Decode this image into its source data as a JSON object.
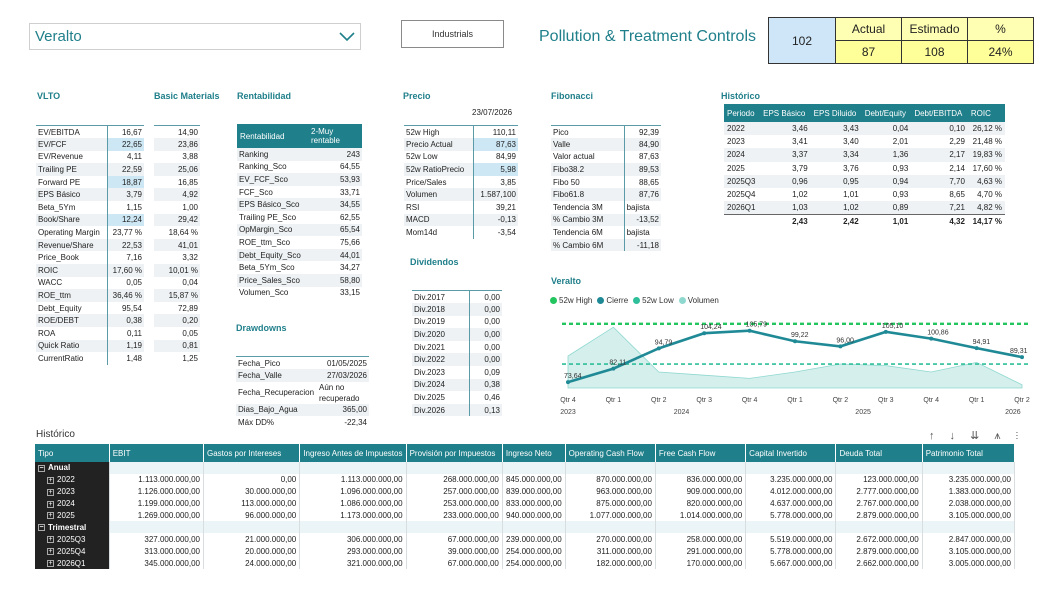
{
  "header": {
    "company": "Veralto",
    "sector": "Industrials",
    "industry": "Pollution & Treatment Controls",
    "kpi": {
      "rank": "102",
      "headers": [
        "Actual",
        "Estimado",
        "%"
      ],
      "values": [
        "87",
        "108",
        "24%"
      ]
    }
  },
  "vlto": {
    "title": "VLTO",
    "rows": [
      [
        "EV/EBITDA",
        "16,67"
      ],
      [
        "EV/FCF",
        "22,65"
      ],
      [
        "EV/Revenue",
        "4,11"
      ],
      [
        "Trailing PE",
        "22,59"
      ],
      [
        "Forward PE",
        "18,87"
      ],
      [
        "EPS Básico",
        "3,79"
      ],
      [
        "Beta_5Ym",
        "1,15"
      ],
      [
        "Book/Share",
        "12,24"
      ],
      [
        "Operating Margin",
        "23,77 %"
      ],
      [
        "Revenue/Share",
        "22,53"
      ],
      [
        "Price_Book",
        "7,16"
      ],
      [
        "ROIC",
        "17,60 %"
      ],
      [
        "WACC",
        "0,05"
      ],
      [
        "ROE_ttm",
        "36,46 %"
      ],
      [
        "Debt_Equity",
        "95,54"
      ],
      [
        "ROE/DEBT",
        "0,38"
      ],
      [
        "ROA",
        "0,11"
      ],
      [
        "Quick Ratio",
        "1,19"
      ],
      [
        "CurrentRatio",
        "1,48"
      ]
    ]
  },
  "basic": {
    "title": "Basic Materials",
    "values": [
      "14,90",
      "23,86",
      "3,88",
      "25,06",
      "16,85",
      "4,92",
      "1,00",
      "29,42",
      "18,64 %",
      "41,01",
      "3,32",
      "10,01 %",
      "0,04",
      "15,87 %",
      "72,89",
      "0,20",
      "0,05",
      "0,81",
      "1,25"
    ]
  },
  "rentabilidad": {
    "title": "Rentabilidad",
    "header": [
      "Rentabilidad",
      "2-Muy rentable"
    ],
    "rows": [
      [
        "Ranking",
        "243"
      ],
      [
        "Ranking_Sco",
        "64,55"
      ],
      [
        "EV_FCF_Sco",
        "53,93"
      ],
      [
        "FCF_Sco",
        "33,71"
      ],
      [
        "EPS Básico_Sco",
        "34,55"
      ],
      [
        "Trailing PE_Sco",
        "62,55"
      ],
      [
        "OpMargin_Sco",
        "65,54"
      ],
      [
        "ROE_ttm_Sco",
        "75,66"
      ],
      [
        "Debt_Equity_Sco",
        "44,01"
      ],
      [
        "Beta_5Ym_Sco",
        "34,27"
      ],
      [
        "Price_Sales_Sco",
        "58,80"
      ],
      [
        "Volumen_Sco",
        "33,15"
      ]
    ]
  },
  "drawdowns": {
    "title": "Drawdowns",
    "rows": [
      [
        "Fecha_Pico",
        "01/05/2025"
      ],
      [
        "Fecha_Valle",
        "27/03/2026"
      ],
      [
        "Fecha_Recuperacion",
        "Aún no recuperado"
      ],
      [
        "Dias_Bajo_Agua",
        "365,00"
      ],
      [
        "Máx DD%",
        "-22,34"
      ]
    ]
  },
  "precio": {
    "title": "Precio",
    "date": "23/07/2026",
    "rows": [
      [
        "52w High",
        "110,11"
      ],
      [
        "Precio Actual",
        "87,63"
      ],
      [
        "52w Low",
        "84,99"
      ],
      [
        "52w RatioPrecio",
        "5,98"
      ],
      [
        "Price/Sales",
        "3,85"
      ],
      [
        "Volumen",
        "1.587,100"
      ],
      [
        "RSI",
        "39,21"
      ],
      [
        "MACD",
        "-0,13"
      ],
      [
        "Mom14d",
        "-3,54"
      ]
    ]
  },
  "dividendos": {
    "title": "Dividendos",
    "rows": [
      [
        "Div.2017",
        "0,00"
      ],
      [
        "Div.2018",
        "0,00"
      ],
      [
        "Div.2019",
        "0,00"
      ],
      [
        "Div.2020",
        "0,00"
      ],
      [
        "Div.2021",
        "0,00"
      ],
      [
        "Div.2022",
        "0,00"
      ],
      [
        "Div.2023",
        "0,09"
      ],
      [
        "Div.2024",
        "0,38"
      ],
      [
        "Div.2025",
        "0,46"
      ],
      [
        "Div.2026",
        "0,13"
      ]
    ]
  },
  "fibonacci": {
    "title": "Fibonacci",
    "rows": [
      [
        "Pico",
        "92,39"
      ],
      [
        "Valle",
        "84,90"
      ],
      [
        "Valor actual",
        "87,63"
      ],
      [
        "Fibo38.2",
        "89,53"
      ],
      [
        "Fibo 50",
        "88,65"
      ],
      [
        "Fibo61.8",
        "87,76"
      ],
      [
        "Tendencia 3M",
        "bajista"
      ],
      [
        "% Cambio 3M",
        "-13,52"
      ],
      [
        "Tendencia 6M",
        "bajista"
      ],
      [
        "% Cambio 6M",
        "-11,18"
      ]
    ]
  },
  "historico_small": {
    "title": "Histórico",
    "headers": [
      "Periodo",
      "EPS Básico",
      "EPS Diluido",
      "Debt/Equity",
      "Debt/EBITDA",
      "ROIC"
    ],
    "rows": [
      [
        "2022",
        "3,46",
        "3,43",
        "0,04",
        "0,10",
        "26,12 %"
      ],
      [
        "2023",
        "3,41",
        "3,40",
        "2,01",
        "2,29",
        "21,48 %"
      ],
      [
        "2024",
        "3,37",
        "3,34",
        "1,36",
        "2,17",
        "19,83 %"
      ],
      [
        "2025",
        "3,79",
        "3,76",
        "0,93",
        "2,14",
        "17,60 %"
      ],
      [
        "2025Q3",
        "0,96",
        "0,95",
        "0,94",
        "7,70",
        "4,63 %"
      ],
      [
        "2025Q4",
        "1,02",
        "1,01",
        "0,93",
        "8,65",
        "4,70 %"
      ],
      [
        "2026Q1",
        "1,03",
        "1,02",
        "0,89",
        "7,21",
        "4,82 %"
      ]
    ],
    "total": [
      "",
      "2,43",
      "2,42",
      "1,01",
      "4,32",
      "14,17 %"
    ]
  },
  "chart_data": {
    "type": "line",
    "title": "Veralto",
    "legend": [
      "52w High",
      "Cierre",
      "52w Low",
      "Volumen"
    ],
    "legend_position": "top-left",
    "x": [
      "Qtr 4 2023",
      "Qtr 1 2024",
      "Qtr 2 2024",
      "Qtr 3 2024",
      "Qtr 4 2024",
      "Qtr 1 2025",
      "Qtr 2 2025",
      "Qtr 3 2025",
      "Qtr 4 2025",
      "Qtr 1 2026",
      "Qtr 2 2026"
    ],
    "x_ticks": [
      "Qtr 4",
      "Qtr 1",
      "Qtr 2",
      "Qtr 3",
      "Qtr 4",
      "Qtr 1",
      "Qtr 2",
      "Qtr 3",
      "Qtr 4",
      "Qtr 1",
      "Qtr 2"
    ],
    "year_labels": [
      {
        "label": "2023",
        "at": 0
      },
      {
        "label": "2024",
        "at": 2.5
      },
      {
        "label": "2025",
        "at": 6.5
      },
      {
        "label": "2026",
        "at": 9.8
      }
    ],
    "series": [
      {
        "name": "52w High",
        "values": [
          110.11,
          110.11,
          110.11,
          110.11,
          110.11,
          110.11,
          110.11,
          110.11,
          110.11,
          110.11,
          110.11
        ],
        "color": "#22c55e",
        "style": "dashed"
      },
      {
        "name": "Cierre",
        "values": [
          73.64,
          82.11,
          94.79,
          104.24,
          105.79,
          99.22,
          96.0,
          105.1,
          100.86,
          94.91,
          89.31
        ],
        "color": "#1f8a96",
        "style": "solid"
      },
      {
        "name": "52w Low",
        "values": [
          84.99,
          84.99,
          84.99,
          84.99,
          84.99,
          84.99,
          84.99,
          84.99,
          84.99,
          84.99,
          84.99
        ],
        "color": "#2fbf9a",
        "style": "dashed"
      },
      {
        "name": "Volumen",
        "values": [
          90,
          108,
          80,
          78,
          76,
          80,
          85,
          84,
          80,
          86,
          72
        ],
        "color": "#8ed8d0",
        "style": "area"
      }
    ],
    "data_labels": [
      "73,64",
      "82,11",
      "94,79",
      "104,24",
      "105,79",
      "99,22",
      "96,00",
      "105,10",
      "100,86",
      "94,91",
      "89,31"
    ],
    "ylim": [
      70,
      115
    ]
  },
  "historico_big": {
    "title": "Histórico",
    "toolbar": "↑ ↓ ⇊ ⩚ ⫶",
    "headers": [
      "Tipo",
      "EBIT",
      "Gastos por Intereses",
      "Ingreso Antes de Impuestos",
      "Provisión por Impuestos",
      "Ingreso Neto",
      "Operating Cash Flow",
      "Free Cash Flow",
      "Capital Invertido",
      "Deuda Total",
      "Patrimonio Total"
    ],
    "groups": [
      {
        "label": "Anual",
        "rows": [
          [
            "2022",
            "1.113.000.000,00",
            "0,00",
            "1.113.000.000,00",
            "268.000.000,00",
            "845.000.000,00",
            "870.000.000,00",
            "836.000.000,00",
            "3.235.000.000,00",
            "123.000.000,00",
            "3.235.000.000,00"
          ],
          [
            "2023",
            "1.126.000.000,00",
            "30.000.000,00",
            "1.096.000.000,00",
            "257.000.000,00",
            "839.000.000,00",
            "963.000.000,00",
            "909.000.000,00",
            "4.012.000.000,00",
            "2.777.000.000,00",
            "1.383.000.000,00"
          ],
          [
            "2024",
            "1.199.000.000,00",
            "113.000.000,00",
            "1.086.000.000,00",
            "253.000.000,00",
            "833.000.000,00",
            "875.000.000,00",
            "820.000.000,00",
            "4.637.000.000,00",
            "2.767.000.000,00",
            "2.038.000.000,00"
          ],
          [
            "2025",
            "1.269.000.000,00",
            "96.000.000,00",
            "1.173.000.000,00",
            "233.000.000,00",
            "940.000.000,00",
            "1.077.000.000,00",
            "1.014.000.000,00",
            "5.778.000.000,00",
            "2.879.000.000,00",
            "3.105.000.000,00"
          ]
        ]
      },
      {
        "label": "Trimestral",
        "rows": [
          [
            "2025Q3",
            "327.000.000,00",
            "21.000.000,00",
            "306.000.000,00",
            "67.000.000,00",
            "239.000.000,00",
            "270.000.000,00",
            "258.000.000,00",
            "5.519.000.000,00",
            "2.672.000.000,00",
            "2.847.000.000,00"
          ],
          [
            "2025Q4",
            "313.000.000,00",
            "20.000.000,00",
            "293.000.000,00",
            "39.000.000,00",
            "254.000.000,00",
            "311.000.000,00",
            "291.000.000,00",
            "5.778.000.000,00",
            "2.879.000.000,00",
            "3.105.000.000,00"
          ],
          [
            "2026Q1",
            "345.000.000,00",
            "24.000.000,00",
            "321.000.000,00",
            "67.000.000,00",
            "254.000.000,00",
            "182.000.000,00",
            "170.000.000,00",
            "5.667.000.000,00",
            "2.662.000.000,00",
            "3.005.000.000,00"
          ]
        ]
      }
    ]
  }
}
